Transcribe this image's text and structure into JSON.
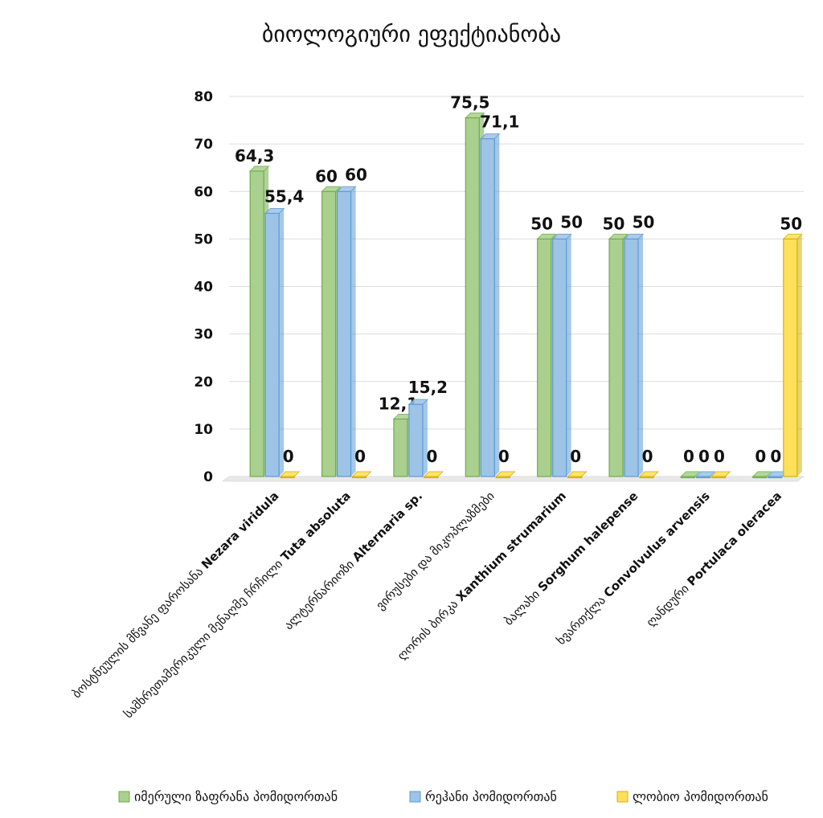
{
  "chart_data": {
    "type": "bar",
    "title": "ბიოლოგიური ეფექტიანობა",
    "ylim": [
      0,
      80
    ],
    "yticks": [
      0,
      10,
      20,
      30,
      40,
      50,
      60,
      70,
      80
    ],
    "grid": true,
    "legend_position": "bottom",
    "categories": [
      {
        "prefix": "ბოსტნეულის მწვანე ფაროსანა ",
        "latin": "Nezara viridula"
      },
      {
        "prefix": "სამხრეთამერიკული მენაღმე ჩრჩილი ",
        "latin": "Tuta absoluta"
      },
      {
        "prefix": "ალტერნარიოზი ",
        "latin": "Alternaria sp."
      },
      {
        "prefix": "ვირუსები და მიკოპლაზმები",
        "latin": ""
      },
      {
        "prefix": "ღორის ბირკა ",
        "latin": "Xanthium strumarium"
      },
      {
        "prefix": "ბალახი ",
        "latin": "Sorghum halepense"
      },
      {
        "prefix": "ხვართქლა ",
        "latin": "Convolvulus arvensis"
      },
      {
        "prefix": "ღანდური ",
        "latin": "Portulaca oleracea"
      }
    ],
    "series": [
      {
        "name": "იმერული ზაფრანა პომიდორთან",
        "color": "#a9d08e",
        "edge": "#70ad47",
        "values": [
          64.3,
          60,
          12.1,
          75.5,
          50,
          50,
          0,
          0
        ],
        "labels": [
          "64,3",
          "60",
          "12,1",
          "75,5",
          "50",
          "50",
          "0",
          "0"
        ]
      },
      {
        "name": "რეჰანი პომიდორთან",
        "color": "#9dc3e6",
        "edge": "#5b9bd5",
        "values": [
          55.4,
          60,
          15.2,
          71.1,
          50,
          50,
          0,
          0
        ],
        "labels": [
          "55,4",
          "60",
          "15,2",
          "71,1",
          "50",
          "50",
          "0",
          "0"
        ]
      },
      {
        "name": "ლობიო პომიდორთან",
        "color": "#ffe05a",
        "edge": "#d4b106",
        "values": [
          0,
          0,
          0,
          0,
          0,
          0,
          0,
          50
        ],
        "labels": [
          "0",
          "0",
          "0",
          "0",
          "0",
          "0",
          "0",
          "50"
        ]
      }
    ]
  }
}
